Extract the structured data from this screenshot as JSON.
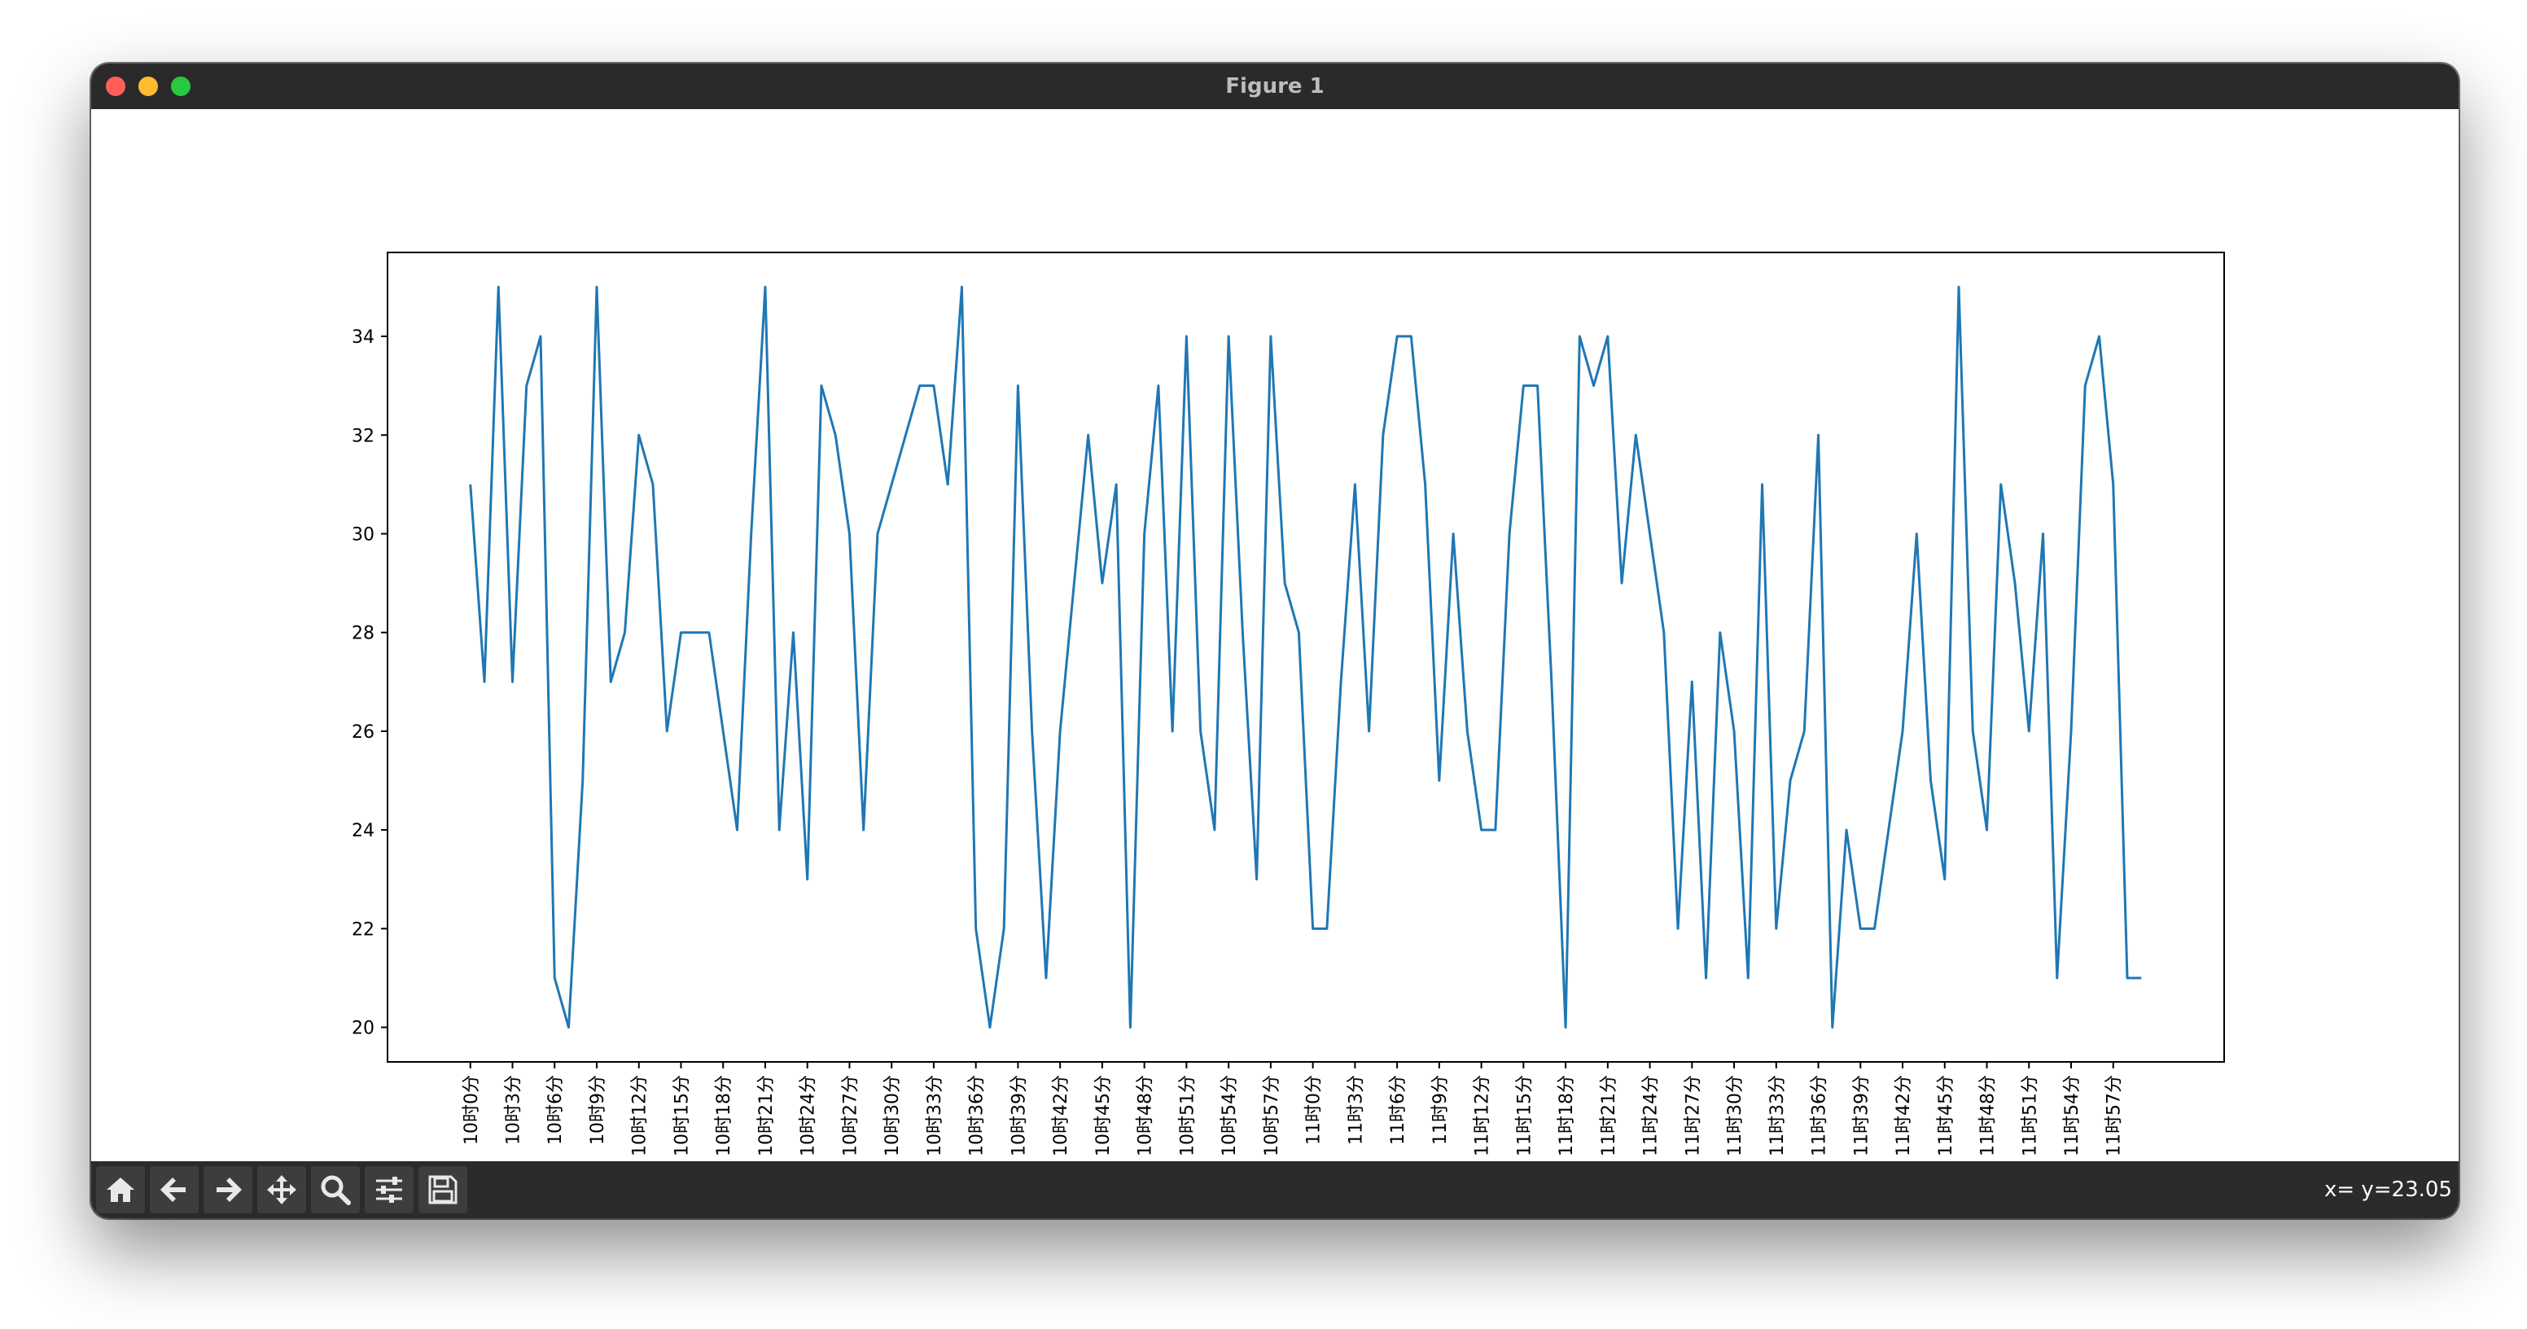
{
  "window": {
    "title": "Figure 1"
  },
  "toolbar": {
    "buttons": [
      {
        "name": "home-icon"
      },
      {
        "name": "back-arrow-icon"
      },
      {
        "name": "forward-arrow-icon"
      },
      {
        "name": "pan-icon"
      },
      {
        "name": "zoom-icon"
      },
      {
        "name": "configure-subplots-icon"
      },
      {
        "name": "save-icon"
      }
    ],
    "coords": "x= y=23.05"
  },
  "chart_data": {
    "type": "line",
    "title": "",
    "xlabel": "",
    "ylabel": "",
    "ylim": [
      19.3,
      35.7
    ],
    "yticks": [
      20,
      22,
      24,
      26,
      28,
      30,
      32,
      34
    ],
    "line_color": "#1f77b4",
    "grid": false,
    "x_tick_labels": [
      "10时0分",
      "10时3分",
      "10时6分",
      "10时9分",
      "10时12分",
      "10时15分",
      "10时18分",
      "10时21分",
      "10时24分",
      "10时27分",
      "10时30分",
      "10时33分",
      "10时36分",
      "10时39分",
      "10时42分",
      "10时45分",
      "10时48分",
      "10时51分",
      "10时54分",
      "10时57分",
      "11时0分",
      "11时3分",
      "11时6分",
      "11时9分",
      "11时12分",
      "11时15分",
      "11时18分",
      "11时21分",
      "11时24分",
      "11时27分",
      "11时30分",
      "11时33分",
      "11时36分",
      "11时39分",
      "11时42分",
      "11时45分",
      "11时48分",
      "11时51分",
      "11时54分",
      "11时57分"
    ],
    "x_tick_every": 3,
    "series": [
      {
        "values": [
          31,
          27,
          35,
          27,
          33,
          34,
          21,
          20,
          25,
          35,
          27,
          28,
          32,
          31,
          26,
          28,
          28,
          28,
          26,
          24,
          30,
          35,
          24,
          28,
          23,
          33,
          32,
          30,
          24,
          30,
          31,
          32,
          33,
          33,
          31,
          35,
          22,
          20,
          22,
          33,
          26,
          21,
          26,
          29,
          32,
          29,
          31,
          20,
          30,
          33,
          26,
          34,
          26,
          24,
          34,
          28,
          23,
          34,
          29,
          28,
          22,
          22,
          27,
          31,
          26,
          32,
          34,
          34,
          31,
          25,
          30,
          26,
          24,
          24,
          30,
          33,
          33,
          27,
          20,
          34,
          33,
          34,
          29,
          32,
          30,
          28,
          22,
          27,
          21,
          28,
          26,
          21,
          31,
          22,
          25,
          26,
          32,
          20,
          24,
          22,
          22,
          24,
          26,
          30,
          25,
          23,
          35,
          26,
          24,
          31,
          29,
          26,
          30,
          21,
          26,
          33,
          34,
          31,
          21,
          21
        ]
      }
    ]
  }
}
